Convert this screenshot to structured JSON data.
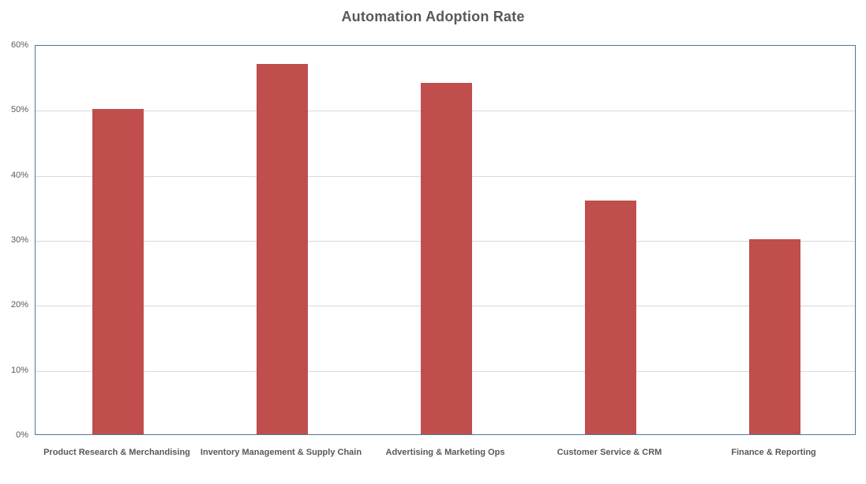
{
  "chart_data": {
    "type": "bar",
    "title": "Automation Adoption Rate",
    "categories": [
      "Product Research & Merchandising",
      "Inventory Management & Supply Chain",
      "Advertising & Marketing Ops",
      "Customer Service & CRM",
      "Finance & Reporting"
    ],
    "values": [
      50,
      57,
      54,
      36,
      30
    ],
    "value_unit": "%",
    "xlabel": "",
    "ylabel": "",
    "ylim": [
      0,
      60
    ],
    "ytick_step": 10,
    "ytick_labels": [
      "0%",
      "10%",
      "20%",
      "30%",
      "40%",
      "50%",
      "60%"
    ],
    "grid": "horizontal",
    "legend": "none",
    "colors": {
      "bar": "#BF4E4D",
      "plot_border": "#50769B",
      "gridline": "#D9D9D9",
      "text": "#595959",
      "background": "#FFFFFF"
    }
  }
}
